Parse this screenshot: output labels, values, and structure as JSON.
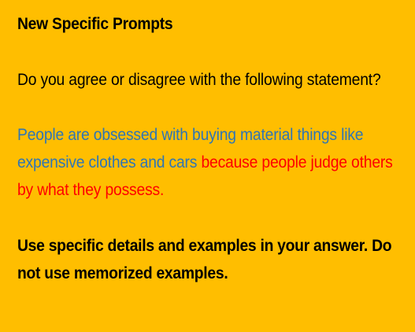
{
  "slide": {
    "title": "New Specific Prompts",
    "question": "Do you agree or disagree with the following statement?",
    "statement_part1": "People are obsessed with buying material things like expensive clothes and cars",
    "statement_part2": "because people judge others by what they possess.",
    "instruction": "Use specific details and examples in your answer. Do not use memorized examples."
  },
  "colors": {
    "background": "#FFBE00",
    "statement_blue": "#2E75B6",
    "statement_red": "#FF0000"
  }
}
